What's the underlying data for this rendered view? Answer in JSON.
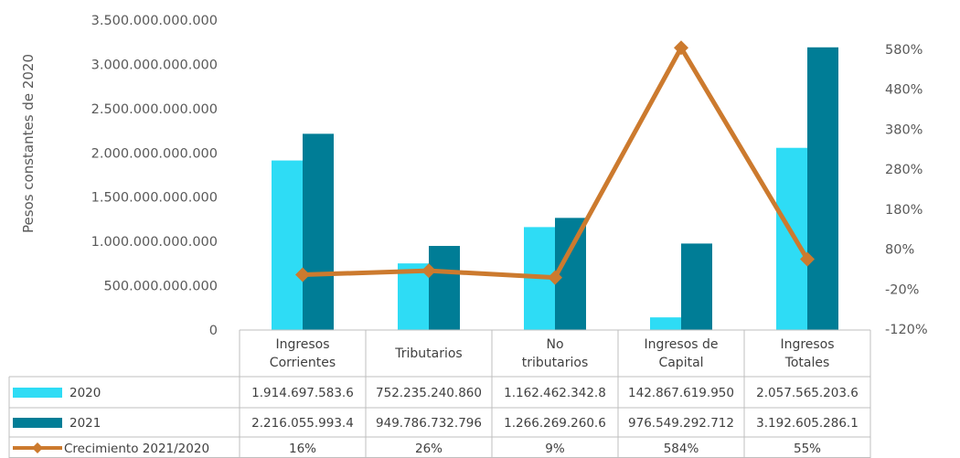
{
  "chart_data": {
    "type": "bar",
    "ylabel": "Pesos constantes de 2020",
    "ylim": [
      0,
      3500000000000
    ],
    "y_ticks": [
      "0",
      "500.000.000.000",
      "1.000.000.000.000",
      "1.500.000.000.000",
      "2.000.000.000.000",
      "2.500.000.000.000",
      "3.000.000.000.000",
      "3.500.000.000.000"
    ],
    "y2lim": [
      -120,
      620
    ],
    "y2_ticks": [
      "-120%",
      "-20%",
      "80%",
      "180%",
      "280%",
      "380%",
      "480%",
      "580%"
    ],
    "y2_tick_values": [
      -120,
      -20,
      80,
      180,
      280,
      380,
      480,
      580
    ],
    "categories": [
      [
        "Ingresos",
        "Corrientes"
      ],
      [
        "Tributarios"
      ],
      [
        "No",
        "tributarios"
      ],
      [
        "Ingresos de",
        "Capital"
      ],
      [
        "Ingresos",
        "Totales"
      ]
    ],
    "series": [
      {
        "name": "2020",
        "kind": "bar",
        "color": "#2EDCF5",
        "values": [
          1914697583600,
          752235240860,
          1162462342800,
          142867619950,
          2057565203600
        ],
        "labels": [
          "1.914.697.583.6",
          "752.235.240.860",
          "1.162.462.342.8",
          "142.867.619.950",
          "2.057.565.203.6"
        ]
      },
      {
        "name": "2021",
        "kind": "bar",
        "color": "#007D96",
        "values": [
          2216055993400,
          949786732796,
          1266269260600,
          976549292712,
          3192605286100
        ],
        "labels": [
          "2.216.055.993.4",
          "949.786.732.796",
          "1.266.269.260.6",
          "976.549.292.712",
          "3.192.605.286.1"
        ]
      },
      {
        "name": "Crecimiento 2021/2020",
        "kind": "line",
        "axis": "right",
        "color": "#CC7A2E",
        "values": [
          16,
          26,
          9,
          584,
          55
        ],
        "labels": [
          "16%",
          "26%",
          "9%",
          "584%",
          "55%"
        ]
      }
    ]
  }
}
